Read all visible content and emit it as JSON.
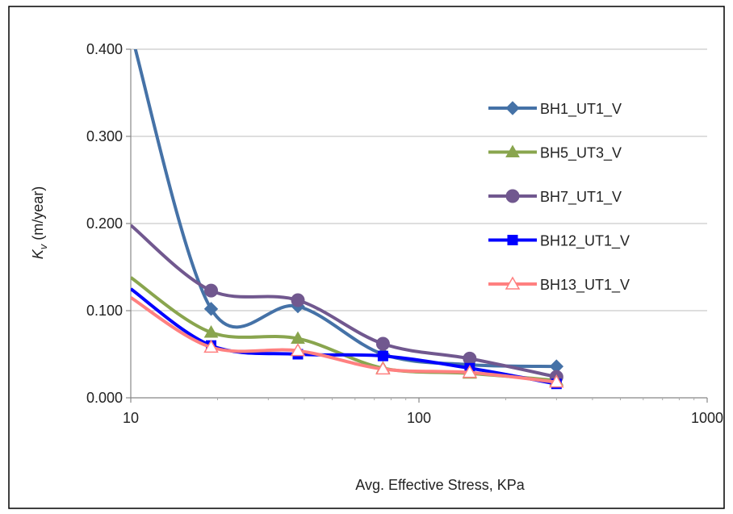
{
  "chart_data": {
    "type": "line",
    "title": "",
    "xlabel": "Avg. Effective Stress, KPa",
    "ylabel_main": "K",
    "ylabel_sub": "v",
    "ylabel_rest": " (m/year)",
    "xscale": "log",
    "xlim": [
      10,
      1000
    ],
    "ylim": [
      0,
      0.4
    ],
    "xticks": [
      10,
      100,
      1000
    ],
    "xtick_labels": [
      "10",
      "100",
      "1000"
    ],
    "yticks": [
      0,
      0.1,
      0.2,
      0.3,
      0.4
    ],
    "ytick_labels": [
      "0.000",
      "0.100",
      "0.200",
      "0.300",
      "0.400"
    ],
    "grid": "horizontal",
    "legend": "right",
    "series": [
      {
        "name": "BH1_UT1_V",
        "color": "#4572A7",
        "marker": "diamond",
        "x": [
          10,
          19,
          38,
          75,
          150,
          300
        ],
        "y": [
          0.42,
          0.102,
          0.105,
          0.05,
          0.038,
          0.036
        ]
      },
      {
        "name": "BH5_UT3_V",
        "color": "#89A54E",
        "marker": "triangle",
        "x": [
          10,
          19,
          38,
          75,
          150,
          300
        ],
        "y": [
          0.138,
          0.075,
          0.068,
          0.034,
          0.028,
          0.02
        ]
      },
      {
        "name": "BH7_UT1_V",
        "color": "#71588F",
        "marker": "circle",
        "x": [
          10,
          19,
          38,
          75,
          150,
          300
        ],
        "y": [
          0.198,
          0.123,
          0.112,
          0.062,
          0.045,
          0.024
        ]
      },
      {
        "name": "BH12_UT1_V",
        "color": "#0000FF",
        "marker": "square",
        "x": [
          10,
          19,
          38,
          75,
          150,
          300
        ],
        "y": [
          0.125,
          0.06,
          0.05,
          0.048,
          0.034,
          0.016
        ]
      },
      {
        "name": "BH13_UT1_V",
        "color": "#FF8080",
        "marker": "triangle-open",
        "x": [
          10,
          19,
          38,
          75,
          150,
          300
        ],
        "y": [
          0.115,
          0.058,
          0.054,
          0.033,
          0.029,
          0.018
        ]
      }
    ]
  }
}
